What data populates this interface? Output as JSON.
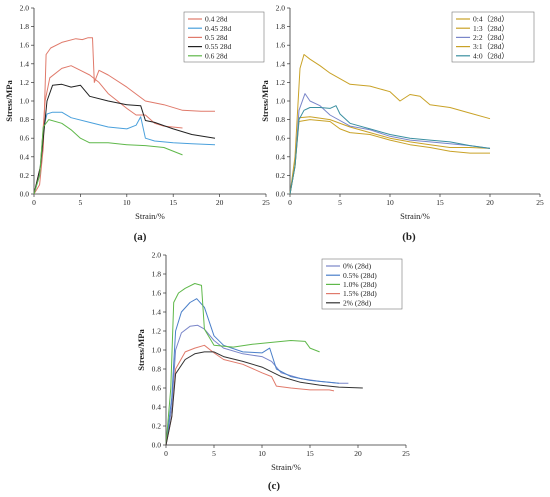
{
  "chart_data": [
    {
      "type": "line",
      "panel_label": "(a)",
      "xlabel": "Strain/%",
      "ylabel": "Stress/MPa",
      "xlim": [
        0,
        25
      ],
      "ylim": [
        0,
        2.0
      ],
      "xticks": [
        "0",
        "5",
        "10",
        "15",
        "20",
        "25"
      ],
      "yticks": [
        "0.0",
        "0.2",
        "0.4",
        "0.6",
        "0.8",
        "1.0",
        "1.2",
        "1.4",
        "1.6",
        "1.8",
        "2.0"
      ],
      "legend_position": "top-right",
      "series": [
        {
          "name": "0.4 28d",
          "color": "#e07a6b",
          "points": [
            [
              0,
              0
            ],
            [
              0.6,
              0.1
            ],
            [
              1.0,
              0.5
            ],
            [
              1.3,
              1.5
            ],
            [
              1.8,
              1.57
            ],
            [
              3,
              1.63
            ],
            [
              4.5,
              1.67
            ],
            [
              5.2,
              1.66
            ],
            [
              5.8,
              1.68
            ],
            [
              6.3,
              1.68
            ],
            [
              6.5,
              1.2
            ],
            [
              7,
              1.33
            ],
            [
              8,
              1.28
            ],
            [
              10,
              1.15
            ],
            [
              12,
              1.0
            ],
            [
              14,
              0.96
            ],
            [
              16,
              0.9
            ],
            [
              18,
              0.89
            ],
            [
              19.5,
              0.89
            ]
          ]
        },
        {
          "name": "0.45 28d",
          "color": "#4aa0dc",
          "points": [
            [
              0,
              0
            ],
            [
              0.6,
              0.2
            ],
            [
              1.0,
              0.7
            ],
            [
              1.4,
              0.86
            ],
            [
              2,
              0.88
            ],
            [
              3,
              0.88
            ],
            [
              4,
              0.82
            ],
            [
              6,
              0.77
            ],
            [
              8,
              0.72
            ],
            [
              10,
              0.7
            ],
            [
              11,
              0.74
            ],
            [
              11.5,
              0.83
            ],
            [
              12,
              0.6
            ],
            [
              13,
              0.57
            ],
            [
              15,
              0.55
            ],
            [
              17,
              0.54
            ],
            [
              19.5,
              0.53
            ]
          ]
        },
        {
          "name": "0.5 28d",
          "color": "#e07a6b",
          "points": [
            [
              0,
              0
            ],
            [
              0.7,
              0.3
            ],
            [
              1.2,
              1.0
            ],
            [
              1.7,
              1.25
            ],
            [
              3,
              1.35
            ],
            [
              4,
              1.38
            ],
            [
              5,
              1.33
            ],
            [
              6,
              1.28
            ],
            [
              7,
              1.2
            ],
            [
              8,
              1.08
            ],
            [
              10,
              0.92
            ],
            [
              11,
              0.85
            ],
            [
              12,
              0.85
            ],
            [
              13,
              0.76
            ],
            [
              14,
              0.73
            ],
            [
              16,
              0.71
            ]
          ]
        },
        {
          "name": "0.55 28d",
          "color": "#222222",
          "points": [
            [
              0,
              0
            ],
            [
              0.7,
              0.3
            ],
            [
              1.4,
              1.0
            ],
            [
              2,
              1.17
            ],
            [
              3,
              1.18
            ],
            [
              4,
              1.15
            ],
            [
              5,
              1.17
            ],
            [
              6,
              1.05
            ],
            [
              8,
              1.0
            ],
            [
              10,
              0.96
            ],
            [
              11.5,
              0.95
            ],
            [
              12,
              0.79
            ],
            [
              13,
              0.77
            ],
            [
              15,
              0.7
            ],
            [
              17,
              0.64
            ],
            [
              19.5,
              0.6
            ]
          ]
        },
        {
          "name": "0.6 28d",
          "color": "#5fb84a",
          "points": [
            [
              0,
              0
            ],
            [
              0.6,
              0.2
            ],
            [
              1.0,
              0.72
            ],
            [
              1.6,
              0.8
            ],
            [
              3,
              0.76
            ],
            [
              4,
              0.69
            ],
            [
              5,
              0.6
            ],
            [
              6,
              0.55
            ],
            [
              8,
              0.55
            ],
            [
              10,
              0.53
            ],
            [
              12,
              0.52
            ],
            [
              14,
              0.5
            ],
            [
              16,
              0.42
            ]
          ]
        }
      ]
    },
    {
      "type": "line",
      "panel_label": "(b)",
      "xlabel": "Strain/%",
      "ylabel": "Stress/MPa",
      "xlim": [
        0,
        25
      ],
      "ylim": [
        0,
        2.0
      ],
      "xticks": [
        "0",
        "5",
        "10",
        "15",
        "20",
        "25"
      ],
      "yticks": [
        "0.0",
        "0.2",
        "0.4",
        "0.6",
        "0.8",
        "1.0",
        "1.2",
        "1.4",
        "1.6",
        "1.8",
        "2.0"
      ],
      "legend_position": "top-right",
      "series": [
        {
          "name": "0:4（28d）",
          "color": "#c9a227",
          "points": [
            [
              0,
              0
            ],
            [
              0.5,
              0.3
            ],
            [
              0.9,
              0.82
            ],
            [
              2,
              0.83
            ],
            [
              4,
              0.8
            ],
            [
              6,
              0.72
            ],
            [
              8,
              0.66
            ],
            [
              10,
              0.6
            ],
            [
              12,
              0.56
            ],
            [
              14,
              0.53
            ],
            [
              16,
              0.5
            ],
            [
              18,
              0.5
            ],
            [
              20,
              0.49
            ]
          ]
        },
        {
          "name": "1:3（28d）",
          "color": "#c9a227",
          "points": [
            [
              0,
              0
            ],
            [
              0.5,
              0.4
            ],
            [
              1.0,
              1.35
            ],
            [
              1.4,
              1.5
            ],
            [
              2,
              1.45
            ],
            [
              3,
              1.38
            ],
            [
              4,
              1.3
            ],
            [
              6,
              1.18
            ],
            [
              8,
              1.16
            ],
            [
              10,
              1.1
            ],
            [
              11,
              1.0
            ],
            [
              12,
              1.07
            ],
            [
              13,
              1.05
            ],
            [
              14,
              0.96
            ],
            [
              16,
              0.93
            ],
            [
              18,
              0.87
            ],
            [
              20,
              0.81
            ]
          ]
        },
        {
          "name": "2:2（28d）",
          "color": "#7a86c9",
          "points": [
            [
              0,
              0
            ],
            [
              0.5,
              0.3
            ],
            [
              0.9,
              0.9
            ],
            [
              1.5,
              1.08
            ],
            [
              2,
              1.0
            ],
            [
              3,
              0.95
            ],
            [
              4,
              0.85
            ],
            [
              6,
              0.73
            ],
            [
              8,
              0.69
            ],
            [
              10,
              0.62
            ],
            [
              12,
              0.58
            ],
            [
              14,
              0.56
            ],
            [
              16,
              0.54
            ],
            [
              18,
              0.52
            ],
            [
              20,
              0.49
            ]
          ]
        },
        {
          "name": "3:1（28d）",
          "color": "#c9a227",
          "points": [
            [
              0,
              0
            ],
            [
              0.5,
              0.3
            ],
            [
              0.9,
              0.78
            ],
            [
              2,
              0.8
            ],
            [
              4,
              0.78
            ],
            [
              5,
              0.7
            ],
            [
              6,
              0.66
            ],
            [
              8,
              0.64
            ],
            [
              10,
              0.58
            ],
            [
              12,
              0.53
            ],
            [
              14,
              0.5
            ],
            [
              16,
              0.46
            ],
            [
              18,
              0.44
            ],
            [
              20,
              0.44
            ]
          ]
        },
        {
          "name": "4:0（28d）",
          "color": "#3a8fa0",
          "points": [
            [
              0,
              0
            ],
            [
              0.5,
              0.3
            ],
            [
              0.9,
              0.8
            ],
            [
              1.4,
              0.9
            ],
            [
              2,
              0.93
            ],
            [
              3,
              0.93
            ],
            [
              4,
              0.92
            ],
            [
              4.6,
              0.95
            ],
            [
              5,
              0.86
            ],
            [
              6,
              0.76
            ],
            [
              8,
              0.7
            ],
            [
              10,
              0.64
            ],
            [
              12,
              0.6
            ],
            [
              14,
              0.58
            ],
            [
              16,
              0.56
            ],
            [
              18,
              0.52
            ],
            [
              20,
              0.49
            ]
          ]
        }
      ]
    },
    {
      "type": "line",
      "panel_label": "(c)",
      "xlabel": "Strain/%",
      "ylabel": "Stress/MPa",
      "xlim": [
        0,
        25
      ],
      "ylim": [
        0,
        2.0
      ],
      "xticks": [
        "0",
        "5",
        "10",
        "15",
        "20",
        "25"
      ],
      "yticks": [
        "0.0",
        "0.2",
        "0.4",
        "0.6",
        "0.8",
        "1.0",
        "1.2",
        "1.4",
        "1.6",
        "1.8",
        "2.0"
      ],
      "legend_position": "top-right",
      "series": [
        {
          "name": "0% (28d)",
          "color": "#7a86c9",
          "points": [
            [
              0,
              0
            ],
            [
              0.6,
              0.4
            ],
            [
              1.0,
              1.0
            ],
            [
              1.6,
              1.18
            ],
            [
              2.5,
              1.25
            ],
            [
              3.3,
              1.26
            ],
            [
              4,
              1.22
            ],
            [
              5,
              1.1
            ],
            [
              6,
              1.02
            ],
            [
              8,
              0.96
            ],
            [
              10,
              0.93
            ],
            [
              11,
              0.88
            ],
            [
              12,
              0.76
            ],
            [
              14,
              0.7
            ],
            [
              16,
              0.67
            ],
            [
              18,
              0.65
            ],
            [
              19,
              0.65
            ]
          ]
        },
        {
          "name": "0.5% (28d)",
          "color": "#4a7fc9",
          "points": [
            [
              0,
              0
            ],
            [
              0.6,
              0.5
            ],
            [
              1.0,
              1.2
            ],
            [
              1.6,
              1.4
            ],
            [
              2.5,
              1.5
            ],
            [
              3.2,
              1.54
            ],
            [
              4,
              1.45
            ],
            [
              5,
              1.15
            ],
            [
              6,
              1.05
            ],
            [
              8,
              0.98
            ],
            [
              10,
              0.97
            ],
            [
              10.8,
              1.02
            ],
            [
              11.5,
              0.8
            ],
            [
              13,
              0.72
            ],
            [
              15,
              0.68
            ],
            [
              17,
              0.66
            ],
            [
              18,
              0.65
            ]
          ]
        },
        {
          "name": "1.0% (28d)",
          "color": "#5fb84a",
          "points": [
            [
              0,
              0
            ],
            [
              0.5,
              0.6
            ],
            [
              0.8,
              1.5
            ],
            [
              1.3,
              1.6
            ],
            [
              2,
              1.65
            ],
            [
              3,
              1.7
            ],
            [
              3.7,
              1.68
            ],
            [
              4,
              1.22
            ],
            [
              5,
              1.05
            ],
            [
              7,
              1.03
            ],
            [
              9,
              1.06
            ],
            [
              11,
              1.08
            ],
            [
              13,
              1.1
            ],
            [
              14.5,
              1.09
            ],
            [
              15,
              1.02
            ],
            [
              16,
              0.98
            ]
          ]
        },
        {
          "name": "1.5% (28d)",
          "color": "#e07a6b",
          "points": [
            [
              0,
              0
            ],
            [
              0.6,
              0.3
            ],
            [
              1.0,
              0.8
            ],
            [
              2,
              0.98
            ],
            [
              3,
              1.02
            ],
            [
              4,
              1.05
            ],
            [
              5,
              0.97
            ],
            [
              6,
              0.9
            ],
            [
              8,
              0.85
            ],
            [
              10,
              0.76
            ],
            [
              11,
              0.72
            ],
            [
              11.5,
              0.62
            ],
            [
              13,
              0.6
            ],
            [
              15,
              0.58
            ],
            [
              17,
              0.58
            ],
            [
              17.5,
              0.57
            ]
          ]
        },
        {
          "name": "2% (28d)",
          "color": "#333333",
          "points": [
            [
              0,
              0
            ],
            [
              0.6,
              0.3
            ],
            [
              1.0,
              0.75
            ],
            [
              2,
              0.9
            ],
            [
              3,
              0.96
            ],
            [
              4,
              0.98
            ],
            [
              5,
              0.98
            ],
            [
              6,
              0.93
            ],
            [
              8,
              0.88
            ],
            [
              10,
              0.82
            ],
            [
              12,
              0.72
            ],
            [
              14,
              0.66
            ],
            [
              16,
              0.63
            ],
            [
              18,
              0.61
            ],
            [
              20.5,
              0.6
            ]
          ]
        }
      ]
    }
  ]
}
